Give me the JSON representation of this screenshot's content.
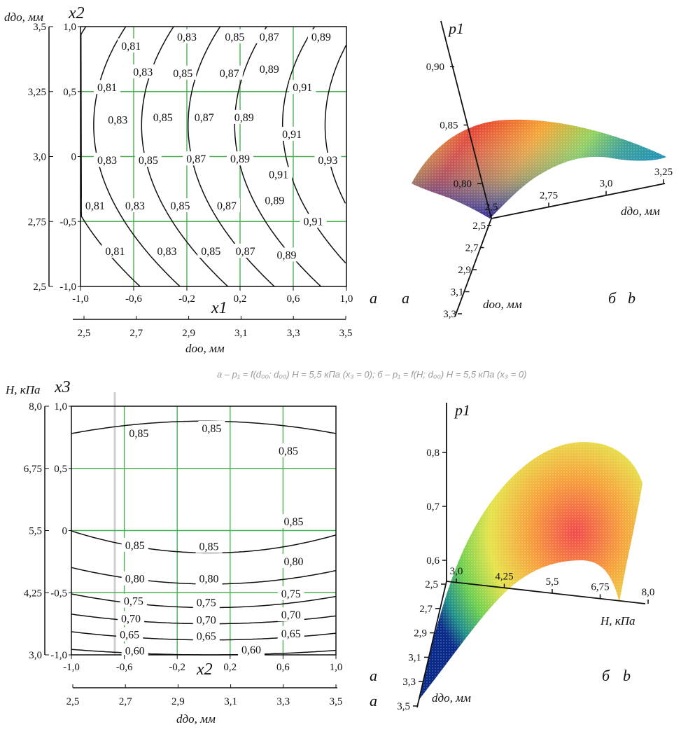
{
  "caption": "а – p₁ = f(d₀₀; d₀₀) H = 5,5 кПа (x₃ = 0); б – p₁ = f(H; d₀₀) H = 5,5 кПа (x₃ = 0)",
  "colors": {
    "grid": "#4caf50",
    "line": "#111111",
    "background": "#ffffff"
  },
  "chart_data": [
    {
      "type": "contour",
      "panel_tags": [
        "а",
        "a"
      ],
      "xlabel": "x1",
      "ylabel": "x2",
      "x_ticks": [
        "-1,0",
        "-0,6",
        "-0,2",
        "0,2",
        "0,6",
        "1,0"
      ],
      "y_ticks": [
        "-1,0",
        "-0,5",
        "0",
        "0,5",
        "1,0"
      ],
      "secondary_x_label": "dоо, мм",
      "secondary_x_ticks": [
        "2,5",
        "2,7",
        "2,9",
        "3,1",
        "3,3",
        "3,5"
      ],
      "secondary_y_label": "dдо, мм",
      "secondary_y_ticks": [
        "2,5",
        "2,75",
        "3,0",
        "3,25",
        "3,5"
      ],
      "xlim": [
        -1,
        1
      ],
      "ylim": [
        -1,
        1
      ],
      "grid": true,
      "contour_levels": [
        0.79,
        0.81,
        0.83,
        0.85,
        0.87,
        0.89,
        0.91,
        0.93
      ],
      "contour_labels": [
        {
          "text": "0,81",
          "x": -0.62,
          "y": 0.85
        },
        {
          "text": "0,83",
          "x": -0.2,
          "y": 0.92
        },
        {
          "text": "0,85",
          "x": 0.16,
          "y": 0.92
        },
        {
          "text": "0,87",
          "x": 0.42,
          "y": 0.92
        },
        {
          "text": "0,89",
          "x": 0.81,
          "y": 0.92
        },
        {
          "text": "0,83",
          "x": -0.53,
          "y": 0.65
        },
        {
          "text": "0,85",
          "x": -0.23,
          "y": 0.64
        },
        {
          "text": "0,87",
          "x": 0.12,
          "y": 0.64
        },
        {
          "text": "0,89",
          "x": 0.42,
          "y": 0.67
        },
        {
          "text": "0,81",
          "x": -0.8,
          "y": 0.53
        },
        {
          "text": "0,91",
          "x": 0.67,
          "y": 0.53
        },
        {
          "text": "0,83",
          "x": -0.72,
          "y": 0.28
        },
        {
          "text": "0,85",
          "x": -0.38,
          "y": 0.3
        },
        {
          "text": "0,87",
          "x": -0.07,
          "y": 0.3
        },
        {
          "text": "0,89",
          "x": 0.23,
          "y": 0.3
        },
        {
          "text": "0,91",
          "x": 0.59,
          "y": 0.17
        },
        {
          "text": "0,83",
          "x": -0.8,
          "y": -0.03
        },
        {
          "text": "0,85",
          "x": -0.49,
          "y": -0.03
        },
        {
          "text": "0,87",
          "x": -0.13,
          "y": -0.02
        },
        {
          "text": "0,89",
          "x": 0.2,
          "y": -0.02
        },
        {
          "text": "0,93",
          "x": 0.86,
          "y": -0.03
        },
        {
          "text": "0,91",
          "x": 0.49,
          "y": -0.14
        },
        {
          "text": "0,81",
          "x": -0.89,
          "y": -0.38
        },
        {
          "text": "0,83",
          "x": -0.59,
          "y": -0.38
        },
        {
          "text": "0,85",
          "x": -0.25,
          "y": -0.38
        },
        {
          "text": "0,87",
          "x": 0.1,
          "y": -0.38
        },
        {
          "text": "0,89",
          "x": 0.46,
          "y": -0.34
        },
        {
          "text": "0,91",
          "x": 0.75,
          "y": -0.5
        },
        {
          "text": "0,81",
          "x": -0.74,
          "y": -0.73
        },
        {
          "text": "0,83",
          "x": -0.35,
          "y": -0.73
        },
        {
          "text": "0,85",
          "x": -0.02,
          "y": -0.73
        },
        {
          "text": "0,87",
          "x": 0.24,
          "y": -0.73
        },
        {
          "text": "0,89",
          "x": 0.55,
          "y": -0.76
        }
      ]
    },
    {
      "type": "surface3d",
      "panel_tags": [
        "б",
        "b"
      ],
      "zlabel": "p1",
      "xlabel": "dдо, мм",
      "ylabel": "dоо, мм",
      "z_ticks": [
        "0,80",
        "0,85",
        "0,90"
      ],
      "x_ticks": [
        "2,5",
        "2,75",
        "3,0",
        "3,25"
      ],
      "y_ticks": [
        "2,5",
        "2,7",
        "2,9",
        "3,1",
        "3,3"
      ],
      "colormap": "red-yellow-green-blue"
    },
    {
      "type": "contour",
      "panel_tags": [
        "а",
        "a"
      ],
      "xlabel": "x2",
      "ylabel": "x3",
      "x_ticks": [
        "-1,0",
        "-0,6",
        "-0,2",
        "0,2",
        "0,6",
        "1,0"
      ],
      "y_ticks": [
        "-1,0",
        "-0,5",
        "0",
        "0,5",
        "1,0"
      ],
      "secondary_x_label": "dдо, мм",
      "secondary_x_ticks": [
        "2,5",
        "2,7",
        "2,9",
        "3,1",
        "3,3",
        "3,5"
      ],
      "secondary_y_label": "H, кПа",
      "secondary_y_ticks": [
        "3,0",
        "4,25",
        "5,5",
        "6,75",
        "8,0"
      ],
      "xlim": [
        -1,
        1
      ],
      "ylim": [
        -1,
        1
      ],
      "grid": true,
      "contour_levels": [
        0.6,
        0.65,
        0.7,
        0.75,
        0.8,
        0.85
      ],
      "contour_labels": [
        {
          "text": "0,85",
          "x": -0.49,
          "y": 0.78
        },
        {
          "text": "0,85",
          "x": 0.06,
          "y": 0.82
        },
        {
          "text": "0,85",
          "x": 0.64,
          "y": 0.64
        },
        {
          "text": "0,85",
          "x": -0.52,
          "y": -0.12
        },
        {
          "text": "0,85",
          "x": 0.04,
          "y": -0.13
        },
        {
          "text": "0,85",
          "x": 0.68,
          "y": 0.07
        },
        {
          "text": "0,80",
          "x": -0.52,
          "y": -0.39
        },
        {
          "text": "0,80",
          "x": 0.04,
          "y": -0.39
        },
        {
          "text": "0,80",
          "x": 0.68,
          "y": -0.25
        },
        {
          "text": "0,75",
          "x": -0.53,
          "y": -0.57
        },
        {
          "text": "0,75",
          "x": 0.02,
          "y": -0.58
        },
        {
          "text": "0,75",
          "x": 0.66,
          "y": -0.51
        },
        {
          "text": "0,70",
          "x": -0.55,
          "y": -0.71
        },
        {
          "text": "0,70",
          "x": 0.02,
          "y": -0.72
        },
        {
          "text": "0,70",
          "x": 0.66,
          "y": -0.68
        },
        {
          "text": "0,65",
          "x": -0.56,
          "y": -0.84
        },
        {
          "text": "0,65",
          "x": 0.02,
          "y": -0.85
        },
        {
          "text": "0,65",
          "x": 0.66,
          "y": -0.83
        },
        {
          "text": "0,60",
          "x": -0.52,
          "y": -0.97
        },
        {
          "text": "0,60",
          "x": 0.36,
          "y": -0.96
        }
      ]
    },
    {
      "type": "surface3d",
      "panel_tags": [
        "б",
        "b"
      ],
      "zlabel": "p1",
      "xlabel": "H, кПа",
      "ylabel": "dдо, мм",
      "z_ticks": [
        "0,6",
        "0,7",
        "0,8"
      ],
      "x_ticks": [
        "3,0",
        "4,25",
        "5,5",
        "6,75",
        "8,0"
      ],
      "y_ticks": [
        "2,5",
        "2,7",
        "2,9",
        "3,1",
        "3,3",
        "3,5"
      ],
      "colormap": "red-yellow-green-blue"
    }
  ]
}
